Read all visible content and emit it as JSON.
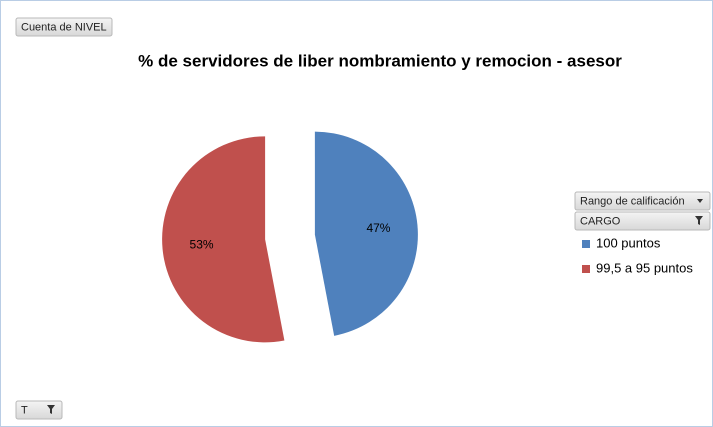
{
  "chart_data": {
    "type": "pie",
    "title": "% de servidores de liber nombramiento y remocion - asesor",
    "value_field": "Cuenta de NIVEL",
    "legend_fields": [
      "Rango de calificación",
      "CARGO"
    ],
    "axis_field": "T",
    "categories": [
      "100 puntos",
      "99,5 a 95 puntos"
    ],
    "values": [
      47,
      53
    ],
    "value_labels": [
      "47%",
      "53%"
    ],
    "colors": [
      "#4f81bd",
      "#c0504d"
    ],
    "exploded": true,
    "legend": "right"
  }
}
